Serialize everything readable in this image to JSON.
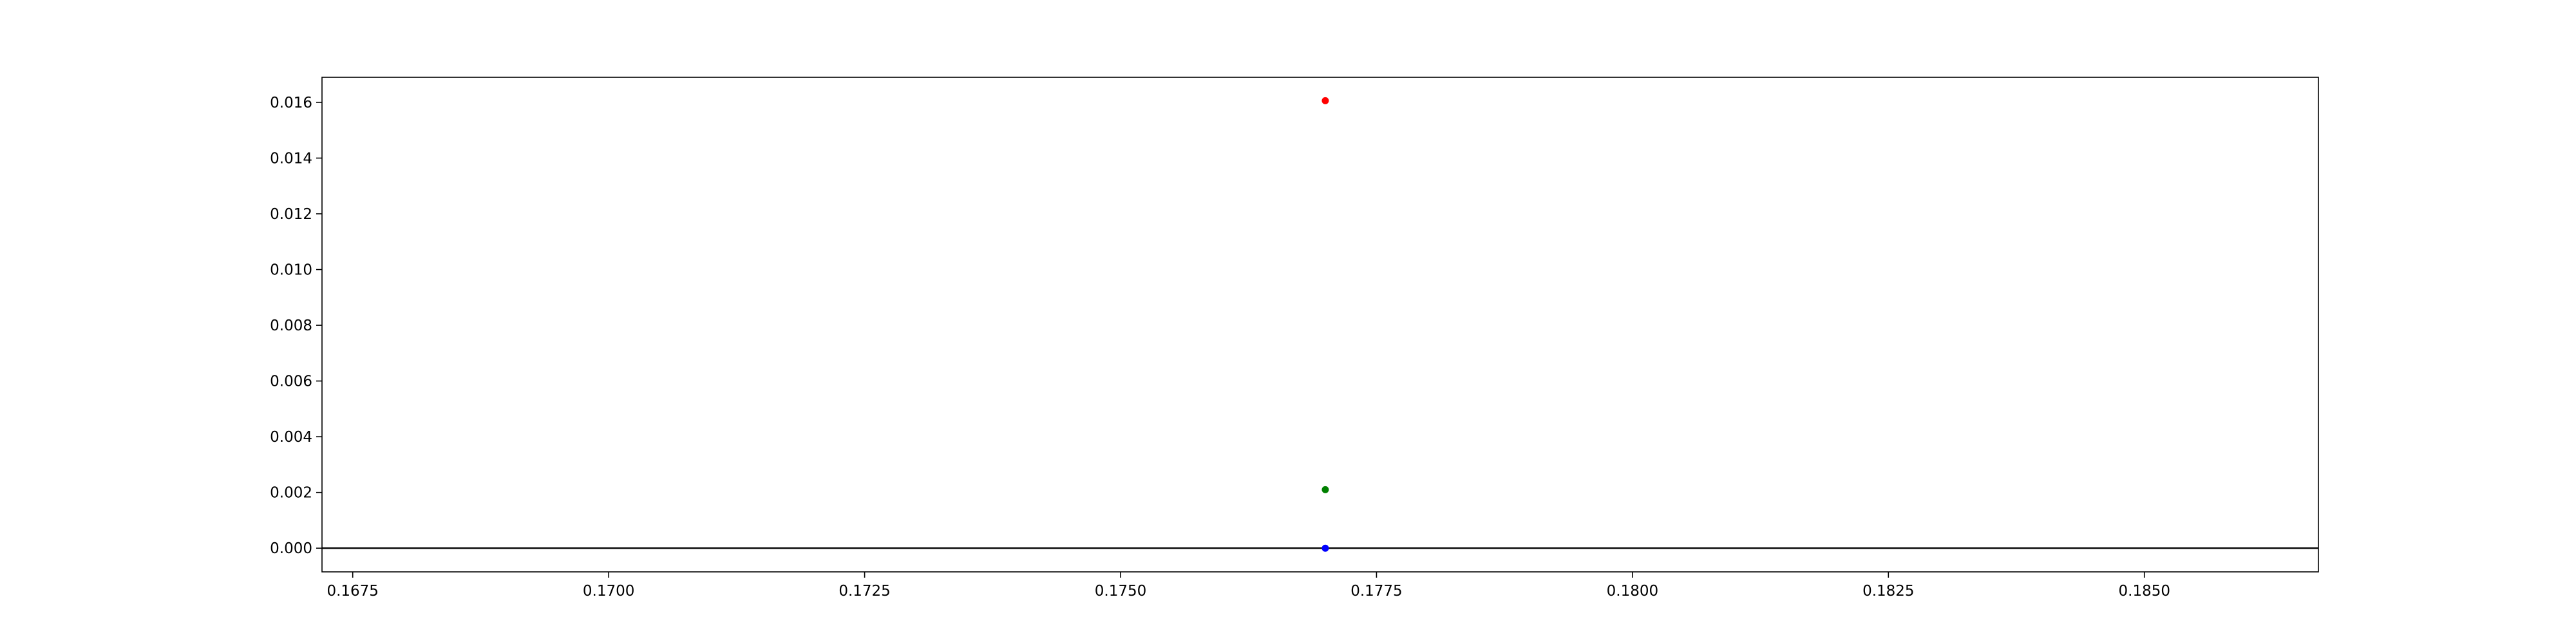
{
  "chart_data": {
    "type": "scatter",
    "title": "",
    "xlabel": "",
    "ylabel": "",
    "xlim": [
      0.1672,
      0.1867
    ],
    "ylim": [
      -0.00085,
      0.0169
    ],
    "x_ticks": [
      "0.1675",
      "0.1700",
      "0.1725",
      "0.1750",
      "0.1775",
      "0.1800",
      "0.1825",
      "0.1850"
    ],
    "y_ticks": [
      "0.000",
      "0.002",
      "0.004",
      "0.006",
      "0.008",
      "0.010",
      "0.012",
      "0.014",
      "0.016"
    ],
    "grid": false,
    "legend": "none",
    "hline_y": 0,
    "hline_color": "#000000",
    "points": [
      {
        "x": 0.177,
        "y": 0.01606,
        "color": "#ff0000"
      },
      {
        "x": 0.177,
        "y": 0.0021,
        "color": "#008000"
      },
      {
        "x": 0.177,
        "y": 0.0,
        "color": "#0000ff"
      }
    ]
  }
}
